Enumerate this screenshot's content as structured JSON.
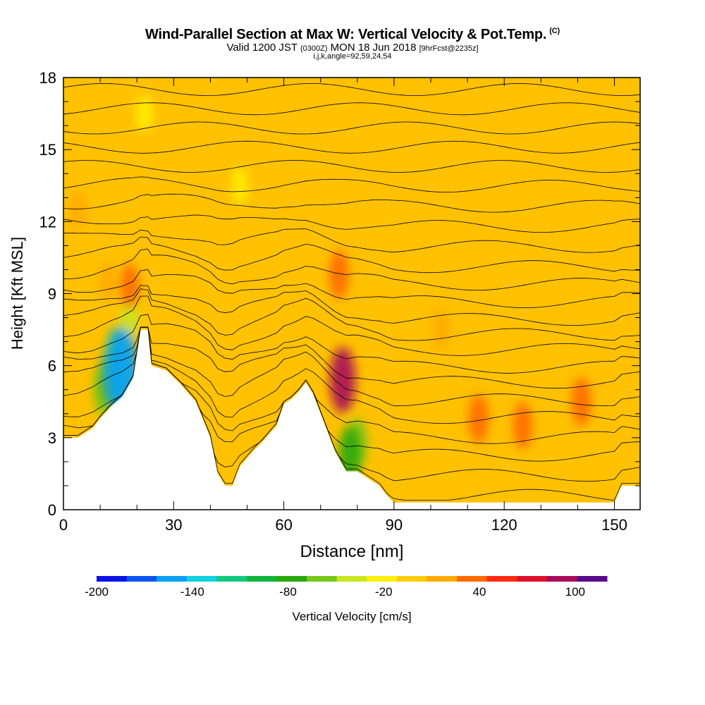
{
  "chart_data": {
    "type": "heatmap",
    "title": "Wind-Parallel Section at Max W: Vertical Velocity & Pot.Temp.",
    "title_tag": "(C)",
    "subtitle_prefix": "Valid 1200 JST",
    "subtitle_utc": "(0300Z)",
    "subtitle_date": "MON 18 Jun 2018",
    "subtitle_forecast": "[9hrFcst@2235z]",
    "subtitle_params": "i,j,k,angle=92,59,24,54",
    "xlabel": "Distance [nm]",
    "ylabel": "Height [Kft MSL]",
    "xlim": [
      0,
      157
    ],
    "ylim": [
      0,
      18
    ],
    "x_ticks": [
      0,
      30,
      60,
      90,
      120,
      150
    ],
    "y_ticks": [
      0,
      3,
      6,
      9,
      12,
      15,
      18
    ],
    "background_value_cms": 0,
    "terrain_kft": [
      [
        0,
        3.0
      ],
      [
        4,
        3.0
      ],
      [
        8,
        3.4
      ],
      [
        10,
        3.8
      ],
      [
        13,
        4.3
      ],
      [
        16,
        4.7
      ],
      [
        19,
        5.5
      ],
      [
        21,
        7.5
      ],
      [
        23,
        7.5
      ],
      [
        24,
        6.0
      ],
      [
        28,
        5.8
      ],
      [
        30,
        5.5
      ],
      [
        32,
        5.2
      ],
      [
        36,
        4.5
      ],
      [
        40,
        3.0
      ],
      [
        42,
        1.5
      ],
      [
        44,
        1.0
      ],
      [
        46,
        1.0
      ],
      [
        48,
        1.8
      ],
      [
        52,
        2.5
      ],
      [
        54,
        2.8
      ],
      [
        58,
        3.5
      ],
      [
        60,
        4.4
      ],
      [
        62,
        4.6
      ],
      [
        64,
        4.9
      ],
      [
        66,
        5.3
      ],
      [
        68,
        4.8
      ],
      [
        70,
        4.0
      ],
      [
        72,
        3.2
      ],
      [
        74,
        2.4
      ],
      [
        77,
        1.6
      ],
      [
        80,
        1.6
      ],
      [
        83,
        1.3
      ],
      [
        86,
        1.0
      ],
      [
        88,
        0.6
      ],
      [
        90,
        0.3
      ],
      [
        150,
        0.3
      ],
      [
        152,
        1.0
      ],
      [
        157,
        1.0
      ]
    ],
    "velocity_cells": [
      {
        "x": 16,
        "z": 5.8,
        "value": -150
      },
      {
        "x": 15,
        "z": 6.2,
        "value": -110
      },
      {
        "x": 13,
        "z": 5.5,
        "value": -80
      },
      {
        "x": 11,
        "z": 5.0,
        "value": -60
      },
      {
        "x": 18,
        "z": 8.0,
        "value": -40
      },
      {
        "x": 78,
        "z": 2.3,
        "value": -75
      },
      {
        "x": 80,
        "z": 2.8,
        "value": -50
      },
      {
        "x": 76,
        "z": 5.4,
        "value": 100
      },
      {
        "x": 75,
        "z": 9.8,
        "value": 50
      },
      {
        "x": 18,
        "z": 9.3,
        "value": 40
      },
      {
        "x": 12,
        "z": 9.5,
        "value": 20
      },
      {
        "x": 113,
        "z": 3.8,
        "value": 50
      },
      {
        "x": 125,
        "z": 3.5,
        "value": 45
      },
      {
        "x": 141,
        "z": 4.5,
        "value": 50
      },
      {
        "x": 48,
        "z": 13.5,
        "value": -20
      },
      {
        "x": 22,
        "z": 16.5,
        "value": -20
      },
      {
        "x": 4,
        "z": 12.5,
        "value": 20
      },
      {
        "x": 103,
        "z": 7.5,
        "value": 20
      }
    ],
    "isentropes_base_kft": [
      1.2,
      2.0,
      2.8,
      3.5,
      4.3,
      5.0,
      5.7,
      6.3,
      7.0,
      7.6,
      8.2,
      8.9,
      9.6,
      10.3,
      11.1,
      11.9,
      12.7,
      13.5,
      14.3,
      15.1,
      15.9,
      16.7,
      17.5
    ],
    "colorbar": {
      "label": "Vertical Velocity [cm/s]",
      "levels": [
        -200,
        -180,
        -160,
        -140,
        -120,
        -100,
        -80,
        -60,
        -40,
        -20,
        0,
        20,
        40,
        60,
        80,
        100,
        120
      ],
      "tick_labels": [
        "-200",
        "-140",
        "-80",
        "-20",
        "40",
        "100"
      ],
      "tick_values": [
        -200,
        -140,
        -80,
        -20,
        40,
        100
      ],
      "colors": [
        "#0a14e6",
        "#0a55f0",
        "#0aa0f5",
        "#10d2e0",
        "#12c880",
        "#12b43c",
        "#2aa80a",
        "#78c81a",
        "#c8e61e",
        "#fff000",
        "#ffcc00",
        "#ffaa00",
        "#ff6a00",
        "#ff2a10",
        "#e0102c",
        "#a80a5a",
        "#5a0a8c"
      ]
    }
  }
}
